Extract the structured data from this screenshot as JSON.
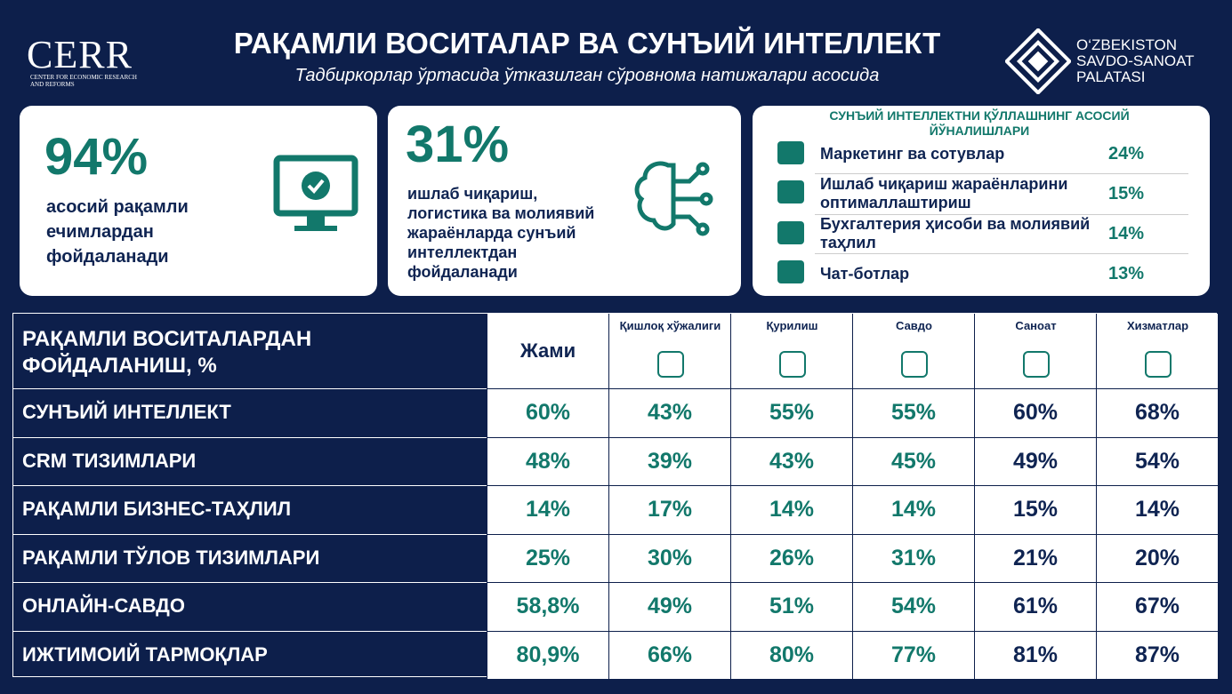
{
  "header": {
    "logo_left": "CERR",
    "logo_left_sub": "CENTER FOR ECONOMIC RESEARCH AND REFORMS",
    "title": "РАҚАМЛИ ВОСИТАЛАР ВА СУНЪИЙ ИНТЕЛЛЕКТ",
    "subtitle": "Тадбиркорлар ўртасида ўтказилган сўровнома натижалари асосида",
    "logo_right": [
      "O‘ZBEKISTON",
      "SAVDO-SANOAT",
      "PALATASI"
    ]
  },
  "cards": [
    {
      "value": "94%",
      "text": "асосий рақамли ечимлардан фойдаланади"
    },
    {
      "value": "31%",
      "text": "ишлаб чиқариш, логистика ва молиявий жараёнларда сунъий интеллектдан фойдаланади"
    }
  ],
  "directions": {
    "title": "СУНЪИЙ ИНТЕЛЛЕКТНИ ҚЎЛЛАШНИНГ АСОСИЙ ЙЎНАЛИШЛАРИ",
    "items": [
      {
        "label": "Маркетинг ва сотувлар",
        "value": "24%"
      },
      {
        "label": "Ишлаб чиқариш жараёнларини оптималлаштириш",
        "value": "15%"
      },
      {
        "label": "Бухгалтерия ҳисоби ва молиявий таҳлил",
        "value": "14%"
      },
      {
        "label": "Чат-ботлар",
        "value": "13%"
      }
    ]
  },
  "table": {
    "title": "РАҚАМЛИ ВОСИТАЛАРДАН ФОЙДАЛАНИШ, %",
    "columns": [
      "Жами",
      "Қишлоқ хўжалиги",
      "Қурилиш",
      "Савдо",
      "Саноат",
      "Хизматлар"
    ],
    "rows": [
      [
        "СУНЪИЙ ИНТЕЛЛЕКТ",
        "60%",
        "43%",
        "55%",
        "55%",
        "60%",
        "68%"
      ],
      [
        "CRM ТИЗИМЛАРИ",
        "48%",
        "39%",
        "43%",
        "45%",
        "49%",
        "54%"
      ],
      [
        "РАҚАМЛИ БИЗНЕС-ТАҲЛИЛ",
        "14%",
        "17%",
        "14%",
        "14%",
        "15%",
        "14%"
      ],
      [
        "РАҚАМЛИ ТЎЛОВ ТИЗИМЛАРИ",
        "25%",
        "30%",
        "26%",
        "31%",
        "21%",
        "20%"
      ],
      [
        "ОНЛАЙН-САВДО",
        "58,8%",
        "49%",
        "51%",
        "54%",
        "61%",
        "67%"
      ],
      [
        "ИЖТИМОИЙ ТАРМОҚЛАР",
        "80,9%",
        "66%",
        "80%",
        "77%",
        "81%",
        "87%"
      ]
    ]
  }
}
